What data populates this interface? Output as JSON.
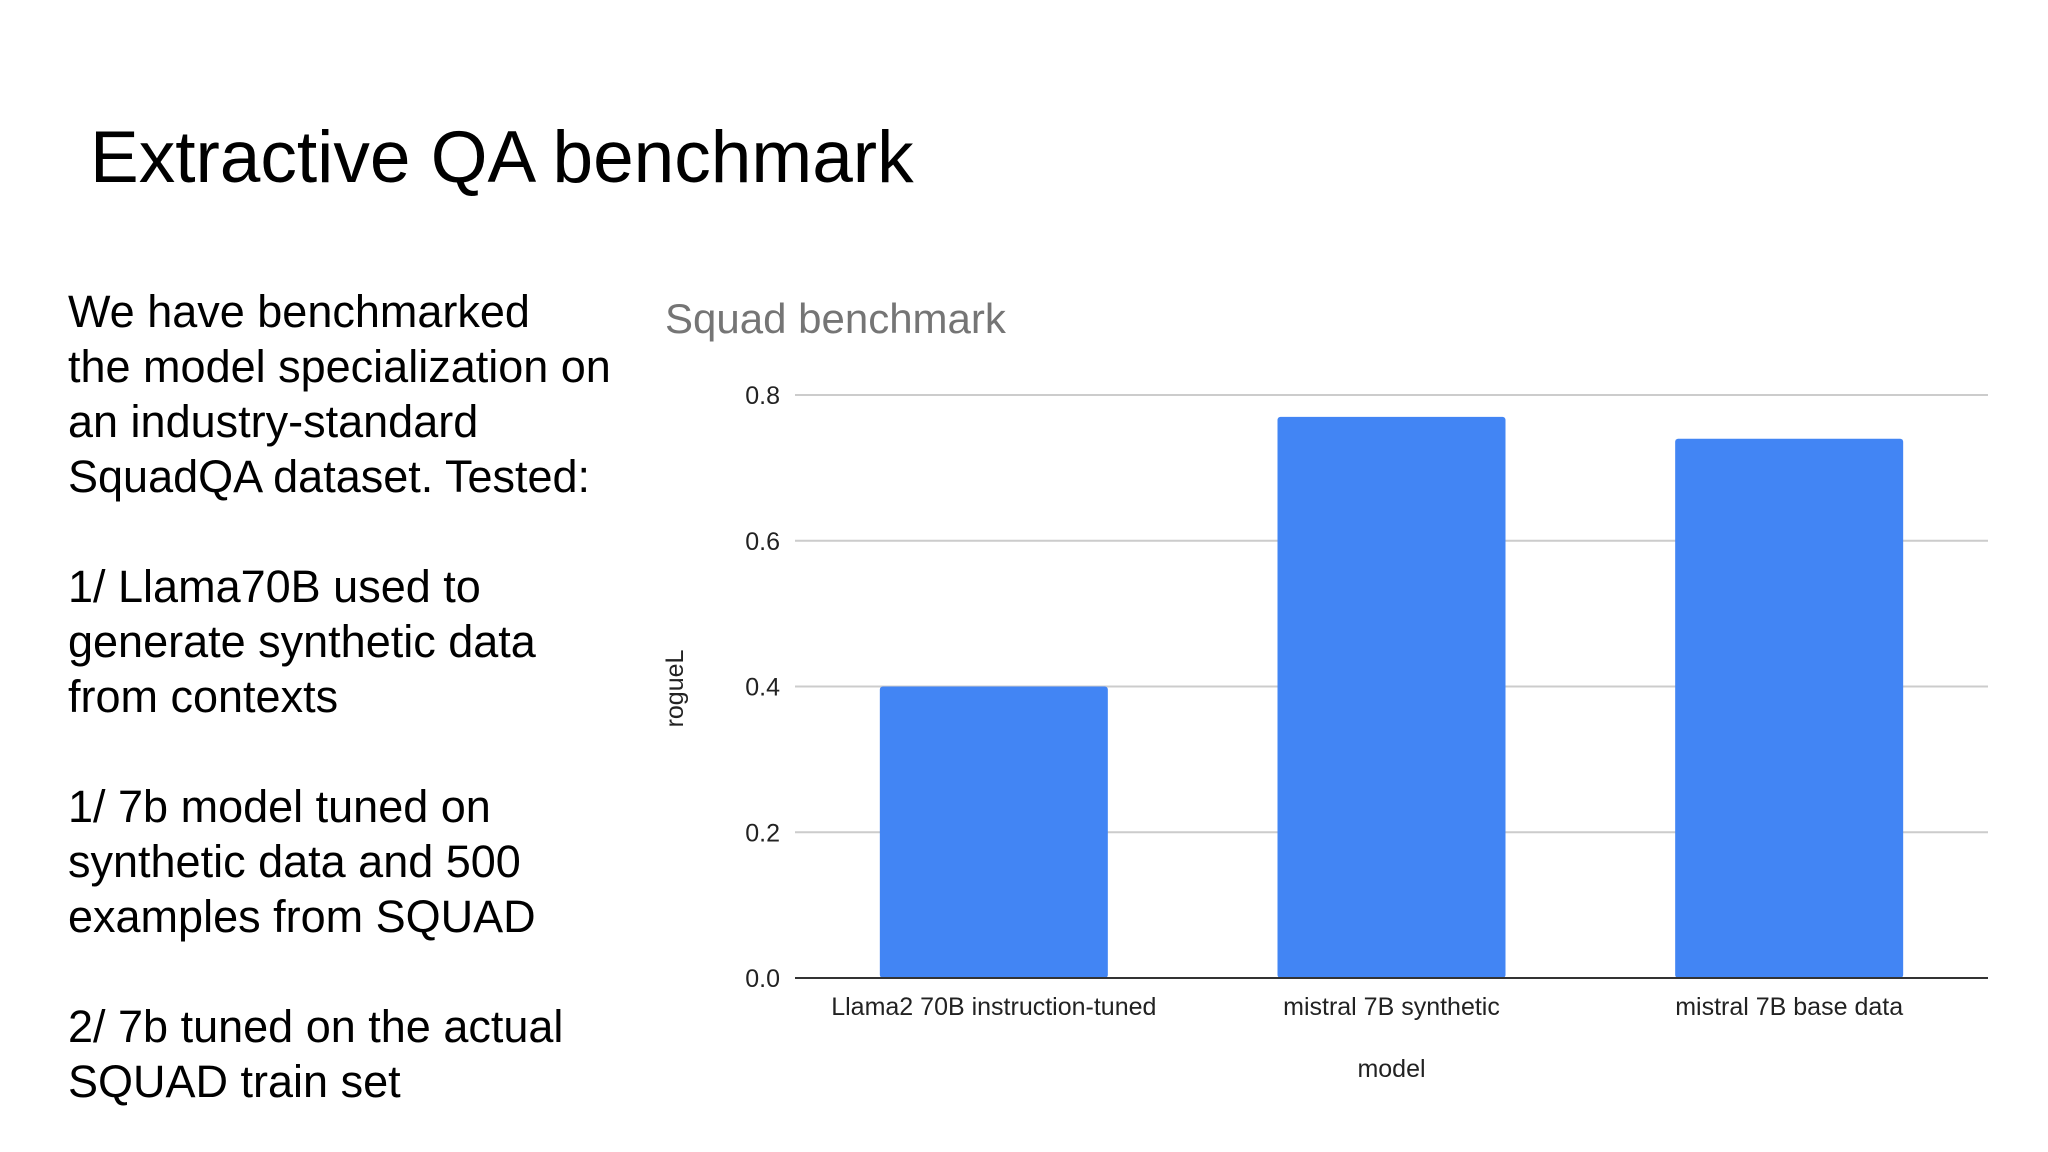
{
  "slide": {
    "title": "Extractive QA benchmark",
    "paragraphs": [
      "We have benchmarked\nthe model specialization on\nan industry-standard\nSquadQA dataset. Tested:",
      "1/ Llama70B used to\ngenerate synthetic data\nfrom contexts",
      "1/ 7b model tuned on\nsynthetic data and 500\nexamples from SQUAD",
      "2/ 7b tuned on the actual\nSQUAD train set"
    ]
  },
  "chart_data": {
    "type": "bar",
    "title": "Squad benchmark",
    "xlabel": "model",
    "ylabel": "rogueL",
    "categories": [
      "Llama2 70B instruction-tuned",
      "mistral 7B synthetic",
      "mistral 7B base data"
    ],
    "values": [
      0.4,
      0.77,
      0.74
    ],
    "ylim": [
      0,
      0.8
    ],
    "yticks": [
      "0.0",
      "0.2",
      "0.4",
      "0.6",
      "0.8"
    ],
    "grid": true,
    "colors": {
      "bar": "#4285F4",
      "title": "#757575",
      "grid": "#CCCCCC",
      "axis": "#333333",
      "text": "#222222"
    }
  }
}
